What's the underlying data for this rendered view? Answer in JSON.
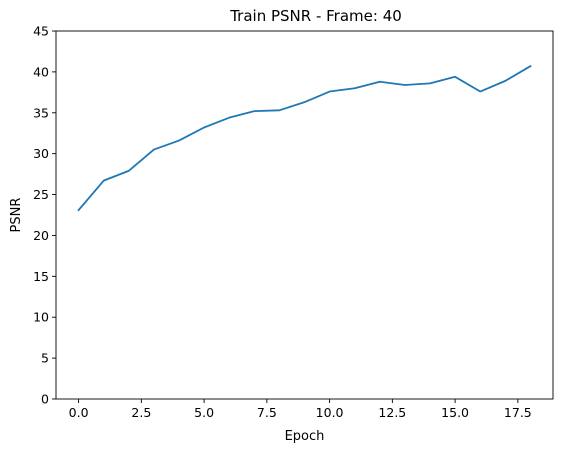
{
  "chart_data": {
    "type": "line",
    "title": "Train PSNR - Frame: 40",
    "xlabel": "Epoch",
    "ylabel": "PSNR",
    "xlim": [
      -0.9,
      18.9
    ],
    "ylim": [
      0,
      45
    ],
    "xticks": [
      0.0,
      2.5,
      5.0,
      7.5,
      10.0,
      12.5,
      15.0,
      17.5
    ],
    "xtick_labels": [
      "0.0",
      "2.5",
      "5.0",
      "7.5",
      "10.0",
      "12.5",
      "15.0",
      "17.5"
    ],
    "yticks": [
      0,
      5,
      10,
      15,
      20,
      25,
      30,
      35,
      40,
      45
    ],
    "ytick_labels": [
      "0",
      "5",
      "10",
      "15",
      "20",
      "25",
      "30",
      "35",
      "40",
      "45"
    ],
    "grid": false,
    "series": [
      {
        "color": "#1f77b4",
        "x": [
          0,
          1,
          2,
          3,
          4,
          5,
          6,
          7,
          8,
          9,
          10,
          11,
          12,
          13,
          14,
          15,
          16,
          17,
          18
        ],
        "y": [
          23.1,
          26.7,
          27.9,
          30.5,
          31.6,
          33.2,
          34.4,
          35.2,
          35.3,
          36.3,
          37.6,
          38.0,
          38.8,
          38.4,
          38.6,
          39.4,
          37.6,
          38.9,
          40.7
        ]
      }
    ]
  }
}
